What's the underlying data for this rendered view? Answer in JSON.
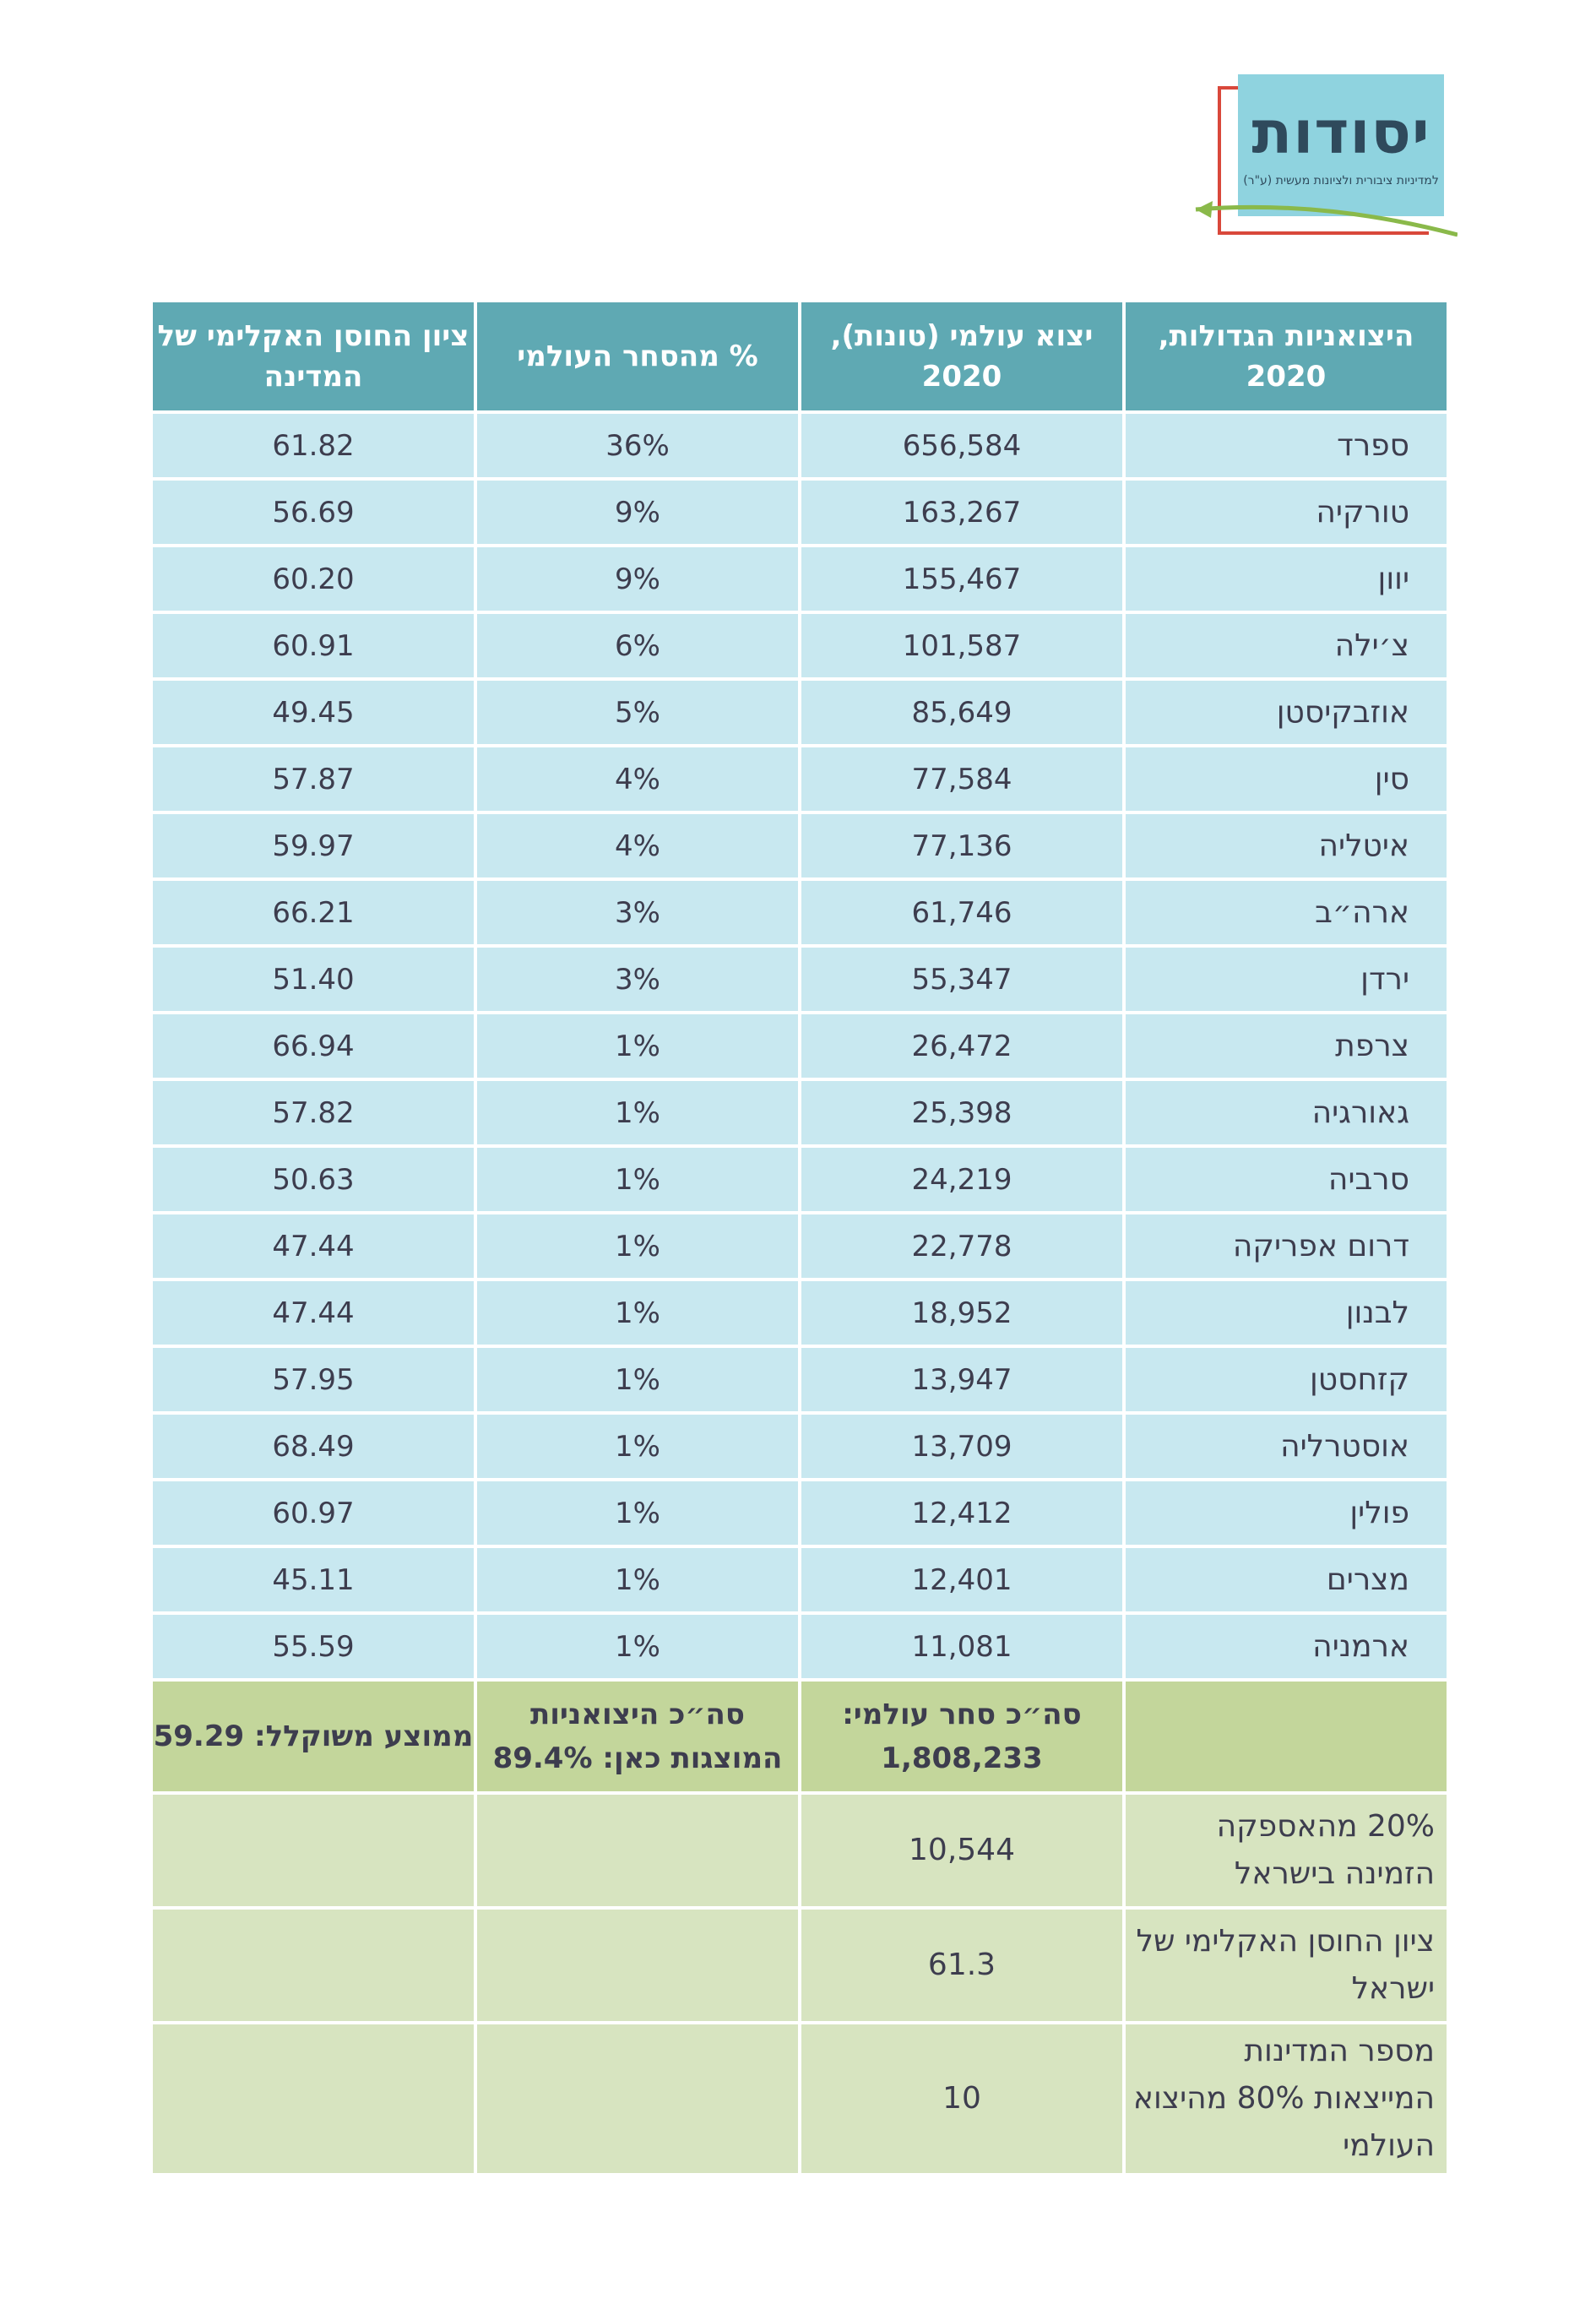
{
  "logo": {
    "title": "יסודות",
    "subtitle": "למדיניות ציבורית ולציונות מעשית (ע\"ר)"
  },
  "table": {
    "headers": [
      "היצואניות הגדולות, 2020",
      "יצוא עולמי (טונות), 2020",
      "% מהסחר העולמי",
      "ציון החוסן האקלימי של המדינה"
    ],
    "rows": [
      {
        "country": "ספרד",
        "export": "656,584",
        "share": "36%",
        "score": "61.82"
      },
      {
        "country": "טורקיה",
        "export": "163,267",
        "share": "9%",
        "score": "56.69"
      },
      {
        "country": "יוון",
        "export": "155,467",
        "share": "9%",
        "score": "60.20"
      },
      {
        "country": "צ׳ילה",
        "export": "101,587",
        "share": "6%",
        "score": "60.91"
      },
      {
        "country": "אוזבקיסטן",
        "export": "85,649",
        "share": "5%",
        "score": "49.45"
      },
      {
        "country": "סין",
        "export": "77,584",
        "share": "4%",
        "score": "57.87"
      },
      {
        "country": "איטליה",
        "export": "77,136",
        "share": "4%",
        "score": "59.97"
      },
      {
        "country": "ארה״ב",
        "export": "61,746",
        "share": "3%",
        "score": "66.21"
      },
      {
        "country": "ירדן",
        "export": "55,347",
        "share": "3%",
        "score": "51.40"
      },
      {
        "country": "צרפת",
        "export": "26,472",
        "share": "1%",
        "score": "66.94"
      },
      {
        "country": "גאורגיה",
        "export": "25,398",
        "share": "1%",
        "score": "57.82"
      },
      {
        "country": "סרביה",
        "export": "24,219",
        "share": "1%",
        "score": "50.63"
      },
      {
        "country": "דרום אפריקה",
        "export": "22,778",
        "share": "1%",
        "score": "47.44"
      },
      {
        "country": "לבנון",
        "export": "18,952",
        "share": "1%",
        "score": "47.44"
      },
      {
        "country": "קזחסטן",
        "export": "13,947",
        "share": "1%",
        "score": "57.95"
      },
      {
        "country": "אוסטרליה",
        "export": "13,709",
        "share": "1%",
        "score": "68.49"
      },
      {
        "country": "פולין",
        "export": "12,412",
        "share": "1%",
        "score": "60.97"
      },
      {
        "country": "מצרים",
        "export": "12,401",
        "share": "1%",
        "score": "45.11"
      },
      {
        "country": "ארמניה",
        "export": "11,081",
        "share": "1%",
        "score": "55.59"
      }
    ],
    "totals": {
      "label": "",
      "export": "סה״כ סחר עולמי: 1,808,233",
      "share": "סה״כ היצואניות המוצגות כאן: 89.4%",
      "score": "ממוצע משוקלל: 59.29"
    },
    "extra_rows": [
      {
        "label": "20% מהאספקה הזמינה בישראל",
        "value": "10,544"
      },
      {
        "label": "ציון החוסן האקלימי של ישראל",
        "value": "61.3"
      },
      {
        "label": "מספר המדינות המייצאות 80% מהיצוא העולמי",
        "value": "10"
      }
    ]
  }
}
